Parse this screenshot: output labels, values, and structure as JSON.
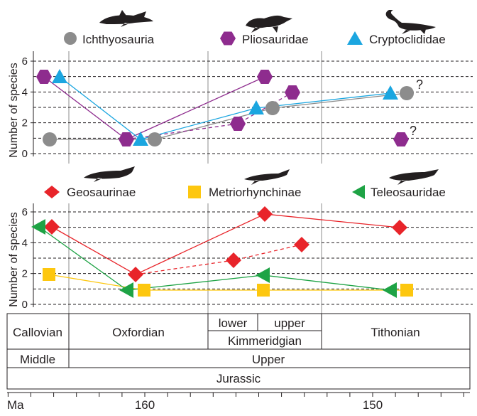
{
  "chart_data": [
    {
      "type": "scatter",
      "ylabel": "Number of species",
      "ylim": [
        0,
        6
      ],
      "yticks": [
        "0",
        "2",
        "4",
        "6"
      ],
      "grid": true,
      "legend_placement": "top",
      "series": [
        {
          "name": "Ichthyosauria",
          "color": "#8c8c8c",
          "marker": "circle",
          "points": [
            {
              "x": "Callovian",
              "y": 1
            },
            {
              "x": "Oxfordian",
              "y": 1
            },
            {
              "x": "upper Kimmeridgian",
              "y": 3
            },
            {
              "x": "Tithonian",
              "y": 4
            }
          ]
        },
        {
          "name": "Pliosauridae",
          "color": "#8e2c8e",
          "marker": "hexagon",
          "points": [
            {
              "x": "Callovian",
              "y": 5
            },
            {
              "x": "Oxfordian",
              "y": 1
            },
            {
              "x": "lower Kimmeridgian",
              "y": 2
            },
            {
              "x": "upper Kimmeridgian",
              "y": 5
            },
            {
              "x": "upper Kimmeridgian",
              "y": 4
            },
            {
              "x": "Tithonian",
              "y": 1
            }
          ]
        },
        {
          "name": "Cryptoclididae",
          "color": "#1ba6e0",
          "marker": "triangle-up",
          "points": [
            {
              "x": "Callovian",
              "y": 5
            },
            {
              "x": "Oxfordian",
              "y": 1
            },
            {
              "x": "upper Kimmeridgian",
              "y": 3
            },
            {
              "x": "Tithonian",
              "y": 4
            }
          ]
        }
      ],
      "annotations": [
        "?",
        "?"
      ]
    },
    {
      "type": "scatter",
      "ylabel": "Number of species",
      "ylim": [
        0,
        6
      ],
      "yticks": [
        "0",
        "2",
        "4",
        "6"
      ],
      "grid": true,
      "legend_placement": "top",
      "series": [
        {
          "name": "Geosaurinae",
          "color": "#e8242a",
          "marker": "diamond",
          "points": [
            {
              "x": "Callovian",
              "y": 5
            },
            {
              "x": "Oxfordian",
              "y": 2
            },
            {
              "x": "lower Kimmeridgian",
              "y": 3
            },
            {
              "x": "upper Kimmeridgian",
              "y": 6
            },
            {
              "x": "upper Kimmeridgian",
              "y": 4
            },
            {
              "x": "Tithonian",
              "y": 5
            }
          ]
        },
        {
          "name": "Metriorhynchinae",
          "color": "#fdc70f",
          "marker": "square",
          "points": [
            {
              "x": "Callovian",
              "y": 2
            },
            {
              "x": "Oxfordian",
              "y": 1
            },
            {
              "x": "upper Kimmeridgian",
              "y": 1
            },
            {
              "x": "Tithonian",
              "y": 1
            }
          ]
        },
        {
          "name": "Teleosauridae",
          "color": "#1ea345",
          "marker": "triangle-left",
          "points": [
            {
              "x": "Callovian",
              "y": 5
            },
            {
              "x": "Oxfordian",
              "y": 1
            },
            {
              "x": "upper Kimmeridgian",
              "y": 2
            },
            {
              "x": "Tithonian",
              "y": 1
            }
          ]
        }
      ]
    }
  ],
  "stratigraphy": {
    "stages": [
      "Callovian",
      "Oxfordian",
      "Kimmeridgian",
      "Tithonian"
    ],
    "substages": [
      "lower",
      "upper"
    ],
    "series": [
      "Middle",
      "Upper"
    ],
    "system": "Jurassic"
  },
  "time_axis": {
    "unit_label": "Ma",
    "tick_labels": [
      "160",
      "150"
    ]
  }
}
